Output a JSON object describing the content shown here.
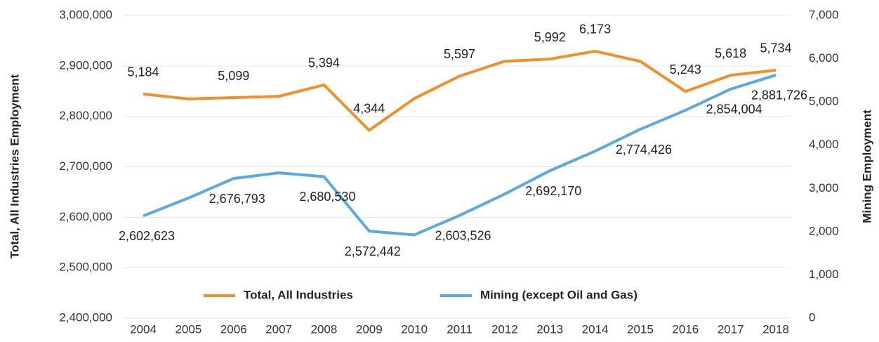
{
  "chart_data": {
    "type": "line",
    "y_label": "Total, All Industries Employment",
    "y2_label": "Mining Employment",
    "categories": [
      "2004",
      "2005",
      "2006",
      "2007",
      "2008",
      "2009",
      "2010",
      "2011",
      "2012",
      "2013",
      "2014",
      "2015",
      "2016",
      "2017",
      "2018"
    ],
    "series": [
      {
        "name": "Total, All Industries",
        "color": "#f28e2b",
        "axis": "y2",
        "values": [
          5184,
          5070,
          5099,
          5130,
          5394,
          4344,
          5080,
          5597,
          5940,
          5992,
          6173,
          5940,
          5243,
          5618,
          5734
        ],
        "value_labels": [
          "5,184",
          null,
          "5,099",
          null,
          "5,394",
          "4,344",
          null,
          "5,597",
          null,
          "5,992",
          "6,173",
          null,
          "5,243",
          "5,618",
          "5,734"
        ]
      },
      {
        "name": "Mining (except Oil and Gas)",
        "color": "#5aa9e0",
        "values": [
          2602623,
          2638000,
          2676793,
          2688000,
          2680530,
          2572442,
          2565000,
          2603526,
          2646000,
          2692170,
          2731000,
          2774426,
          2812000,
          2854004,
          2881726
        ],
        "value_labels": [
          "2,602,623",
          null,
          "2,676,793",
          null,
          "2,680,530",
          "2,572,442",
          null,
          "2,603,526",
          null,
          "2,692,170",
          null,
          "2,774,426",
          null,
          "2,854,004",
          "2,881,726"
        ]
      }
    ],
    "ylim": [
      2400000,
      3000000
    ],
    "yticks": [
      {
        "value": 2400000,
        "label": "2,400,000"
      },
      {
        "value": 2500000,
        "label": "2,500,000"
      },
      {
        "value": 2600000,
        "label": "2,600,000"
      },
      {
        "value": 2700000,
        "label": "2,700,000"
      },
      {
        "value": 2800000,
        "label": "2,800,000"
      },
      {
        "value": 2900000,
        "label": "2,900,000"
      },
      {
        "value": 3000000,
        "label": "3,000,000"
      }
    ],
    "y2lim": [
      0,
      7000
    ],
    "y2ticks": [
      0,
      {
        "value": 1000,
        "label": "1,000"
      },
      {
        "value": 2000,
        "label": "2,000"
      },
      {
        "value": 3000,
        "label": "3,000"
      },
      {
        "value": 4000,
        "label": "4,000"
      },
      {
        "value": 5000,
        "label": "5,000"
      },
      {
        "value": 6000,
        "label": "6,000"
      },
      {
        "value": 7000,
        "label": "7,000"
      }
    ],
    "grid": true
  }
}
